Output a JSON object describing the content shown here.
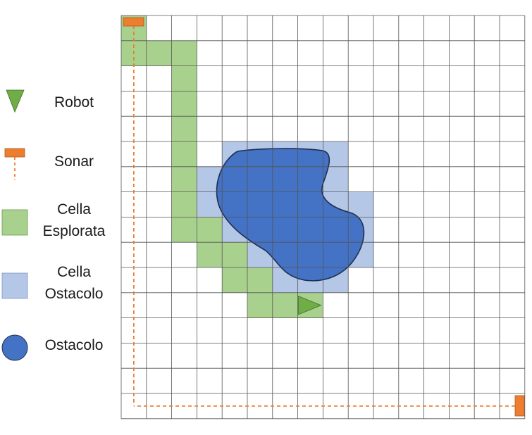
{
  "legend": [
    {
      "key": "robot",
      "label_lines": [
        "Robot"
      ],
      "icon": "triangle-down-icon"
    },
    {
      "key": "sonar",
      "label_lines": [
        "Sonar"
      ],
      "icon": "sonar-icon"
    },
    {
      "key": "explored",
      "label_lines": [
        "Cella",
        "Esplorata"
      ],
      "icon": "green-square-icon"
    },
    {
      "key": "obstacle_cell",
      "label_lines": [
        "Cella",
        "Ostacolo"
      ],
      "icon": "blue-square-icon"
    },
    {
      "key": "obstacle",
      "label_lines": [
        "Ostacolo"
      ],
      "icon": "blue-circle-icon"
    }
  ],
  "grid": {
    "cols": 16,
    "rows": 16
  },
  "colors": {
    "explored": "#a9d18e",
    "obstacle_cell": "#b4c7e7",
    "obstacle": "#4472c4",
    "obstacle_border": "#1f2f4f",
    "robot": "#70ad47",
    "sonar": "#ed7d31",
    "grid_line": "#555555"
  },
  "explored_cells": [
    [
      0,
      0
    ],
    [
      0,
      1
    ],
    [
      1,
      1
    ],
    [
      2,
      1
    ],
    [
      2,
      2
    ],
    [
      2,
      3
    ],
    [
      2,
      4
    ],
    [
      2,
      5
    ],
    [
      2,
      6
    ],
    [
      2,
      7
    ],
    [
      2,
      8
    ],
    [
      3,
      8
    ],
    [
      3,
      9
    ],
    [
      4,
      9
    ],
    [
      4,
      10
    ],
    [
      5,
      10
    ],
    [
      5,
      11
    ],
    [
      6,
      11
    ],
    [
      7,
      11
    ]
  ],
  "obstacle_cells": [
    [
      4,
      5
    ],
    [
      5,
      5
    ],
    [
      6,
      5
    ],
    [
      7,
      5
    ],
    [
      8,
      5
    ],
    [
      3,
      6
    ],
    [
      4,
      6
    ],
    [
      5,
      6
    ],
    [
      6,
      6
    ],
    [
      7,
      6
    ],
    [
      8,
      6
    ],
    [
      3,
      7
    ],
    [
      4,
      7
    ],
    [
      5,
      7
    ],
    [
      6,
      7
    ],
    [
      7,
      7
    ],
    [
      8,
      7
    ],
    [
      9,
      7
    ],
    [
      3,
      8
    ],
    [
      4,
      8
    ],
    [
      5,
      8
    ],
    [
      6,
      8
    ],
    [
      7,
      8
    ],
    [
      8,
      8
    ],
    [
      9,
      8
    ],
    [
      5,
      9
    ],
    [
      6,
      9
    ],
    [
      7,
      9
    ],
    [
      8,
      9
    ],
    [
      9,
      9
    ],
    [
      6,
      10
    ],
    [
      7,
      10
    ],
    [
      8,
      10
    ]
  ],
  "robot": {
    "cell": [
      7,
      11
    ],
    "heading": "right"
  },
  "sonars": [
    {
      "cell": [
        0,
        0
      ],
      "beam": "down"
    },
    {
      "cell": [
        15,
        15
      ],
      "beam": "left"
    }
  ]
}
